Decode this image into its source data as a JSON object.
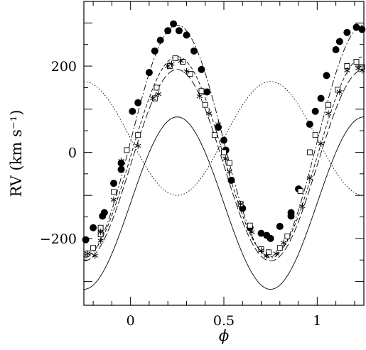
{
  "chart_data": {
    "type": "scatter",
    "xlabel": "ϕ",
    "ylabel": "RV (km s⁻¹)",
    "xlim": [
      -0.25,
      1.25
    ],
    "ylim": [
      -355,
      350
    ],
    "x_ticks": [
      0,
      0.5,
      1
    ],
    "x_tick_labels": [
      "0",
      "0.5",
      "1"
    ],
    "y_ticks": [
      -200,
      0,
      200
    ],
    "y_tick_labels": [
      "−200",
      "0",
      "200"
    ],
    "grid": false,
    "curves": [
      {
        "style": "dash-dot",
        "offset": 25,
        "amplitude": 270
      },
      {
        "style": "short-dash",
        "offset": -10,
        "amplitude": 232
      },
      {
        "style": "long-dash",
        "offset": -30,
        "amplitude": 222
      },
      {
        "style": "dotted",
        "offset": 32,
        "amplitude": -132
      },
      {
        "style": "solid",
        "offset": -118,
        "amplitude": 200
      }
    ],
    "series": [
      {
        "marker": "filled-circle",
        "points": [
          [
            -0.24,
            -203
          ],
          [
            -0.2,
            -175
          ],
          [
            -0.15,
            -148
          ],
          [
            -0.14,
            -140
          ],
          [
            -0.09,
            -72
          ],
          [
            -0.05,
            -25
          ],
          [
            -0.05,
            -40
          ],
          [
            0.01,
            95
          ],
          [
            0.04,
            115
          ],
          [
            0.1,
            185
          ],
          [
            0.13,
            235
          ],
          [
            0.16,
            260
          ],
          [
            0.2,
            282
          ],
          [
            0.23,
            298
          ],
          [
            0.26,
            282
          ],
          [
            0.3,
            272
          ],
          [
            0.34,
            235
          ],
          [
            0.38,
            192
          ],
          [
            0.41,
            140
          ],
          [
            0.47,
            58
          ],
          [
            0.5,
            28
          ],
          [
            0.51,
            5
          ],
          [
            0.54,
            -65
          ],
          [
            0.6,
            -130
          ],
          [
            0.64,
            -175
          ],
          [
            0.7,
            -188
          ],
          [
            0.73,
            -193
          ],
          [
            0.75,
            -200
          ],
          [
            0.8,
            -172
          ],
          [
            0.86,
            -140
          ],
          [
            0.86,
            -148
          ],
          [
            0.9,
            -85
          ],
          [
            0.96,
            65
          ],
          [
            0.99,
            95
          ],
          [
            1.02,
            125
          ],
          [
            1.05,
            178
          ],
          [
            1.1,
            238
          ],
          [
            1.12,
            257
          ],
          [
            1.16,
            278
          ],
          [
            1.21,
            290
          ],
          [
            1.24,
            285
          ]
        ]
      },
      {
        "marker": "open-square",
        "points": [
          [
            -0.23,
            -235
          ],
          [
            -0.2,
            -222
          ],
          [
            -0.16,
            -190
          ],
          [
            -0.16,
            -175
          ],
          [
            -0.09,
            -92
          ],
          [
            -0.02,
            5
          ],
          [
            0.04,
            40
          ],
          [
            0.13,
            125
          ],
          [
            0.14,
            150
          ],
          [
            0.21,
            200
          ],
          [
            0.24,
            218
          ],
          [
            0.28,
            210
          ],
          [
            0.32,
            182
          ],
          [
            0.38,
            142
          ],
          [
            0.4,
            110
          ],
          [
            0.45,
            40
          ],
          [
            0.5,
            0
          ],
          [
            0.53,
            -25
          ],
          [
            0.59,
            -120
          ],
          [
            0.64,
            -170
          ],
          [
            0.7,
            -225
          ],
          [
            0.74,
            -232
          ],
          [
            0.8,
            -222
          ],
          [
            0.84,
            -195
          ],
          [
            0.91,
            -90
          ],
          [
            0.96,
            0
          ],
          [
            0.99,
            40
          ],
          [
            1.06,
            110
          ],
          [
            1.11,
            145
          ],
          [
            1.16,
            200
          ],
          [
            1.21,
            210
          ],
          [
            1.24,
            198
          ]
        ]
      },
      {
        "marker": "cross",
        "points": [
          [
            -0.23,
            -235
          ],
          [
            -0.19,
            -240
          ],
          [
            -0.16,
            -205
          ],
          [
            -0.16,
            -185
          ],
          [
            -0.09,
            -110
          ],
          [
            -0.05,
            -20
          ],
          [
            0.04,
            15
          ],
          [
            0.12,
            125
          ],
          [
            0.15,
            135
          ],
          [
            0.2,
            200
          ],
          [
            0.22,
            205
          ],
          [
            0.27,
            212
          ],
          [
            0.3,
            188
          ],
          [
            0.37,
            130
          ],
          [
            0.42,
            90
          ],
          [
            0.47,
            65
          ],
          [
            0.51,
            -15
          ],
          [
            0.53,
            -45
          ],
          [
            0.59,
            -120
          ],
          [
            0.65,
            -185
          ],
          [
            0.7,
            -228
          ],
          [
            0.73,
            -240
          ],
          [
            0.78,
            -235
          ],
          [
            0.82,
            -210
          ],
          [
            0.92,
            -125
          ],
          [
            0.96,
            -60
          ],
          [
            1.02,
            20
          ],
          [
            1.06,
            90
          ],
          [
            1.12,
            140
          ],
          [
            1.16,
            190
          ],
          [
            1.22,
            195
          ],
          [
            1.24,
            190
          ]
        ]
      }
    ]
  }
}
